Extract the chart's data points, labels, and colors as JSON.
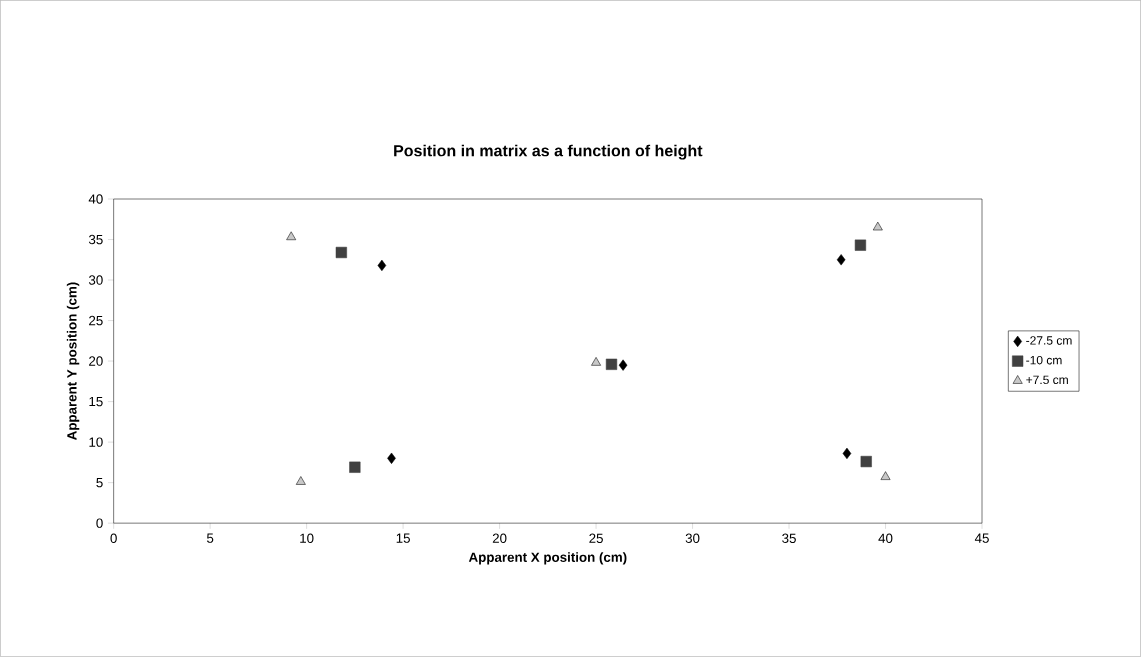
{
  "chart_data": {
    "type": "scatter",
    "title": "Position in matrix as a function of height",
    "xlabel": "Apparent X position (cm)",
    "ylabel": "Apparent Y position (cm)",
    "xlim": [
      0,
      45
    ],
    "xticks": [
      0,
      5,
      10,
      15,
      20,
      25,
      30,
      35,
      40,
      45
    ],
    "ylim": [
      0,
      40
    ],
    "yticks": [
      0,
      5,
      10,
      15,
      20,
      25,
      30,
      35,
      40
    ],
    "legend": "right",
    "series": [
      {
        "name": "-27.5 cm",
        "color": "#000000",
        "marker": "diamond",
        "x": [
          13.9,
          37.7,
          26.4,
          14.4,
          38.0
        ],
        "values": [
          31.8,
          32.5,
          19.5,
          8.0,
          8.6
        ]
      },
      {
        "name": "-10 cm",
        "color": "#404040",
        "marker": "square",
        "x": [
          11.8,
          38.7,
          25.8,
          12.5,
          39.0
        ],
        "values": [
          33.4,
          34.3,
          19.6,
          6.9,
          7.6
        ]
      },
      {
        "name": "+7.5 cm",
        "color": "#c8c8c8",
        "marker": "triangle",
        "x": [
          9.2,
          39.6,
          25.0,
          9.7,
          40.0
        ],
        "values": [
          35.3,
          36.5,
          19.8,
          5.1,
          5.7
        ]
      }
    ]
  }
}
